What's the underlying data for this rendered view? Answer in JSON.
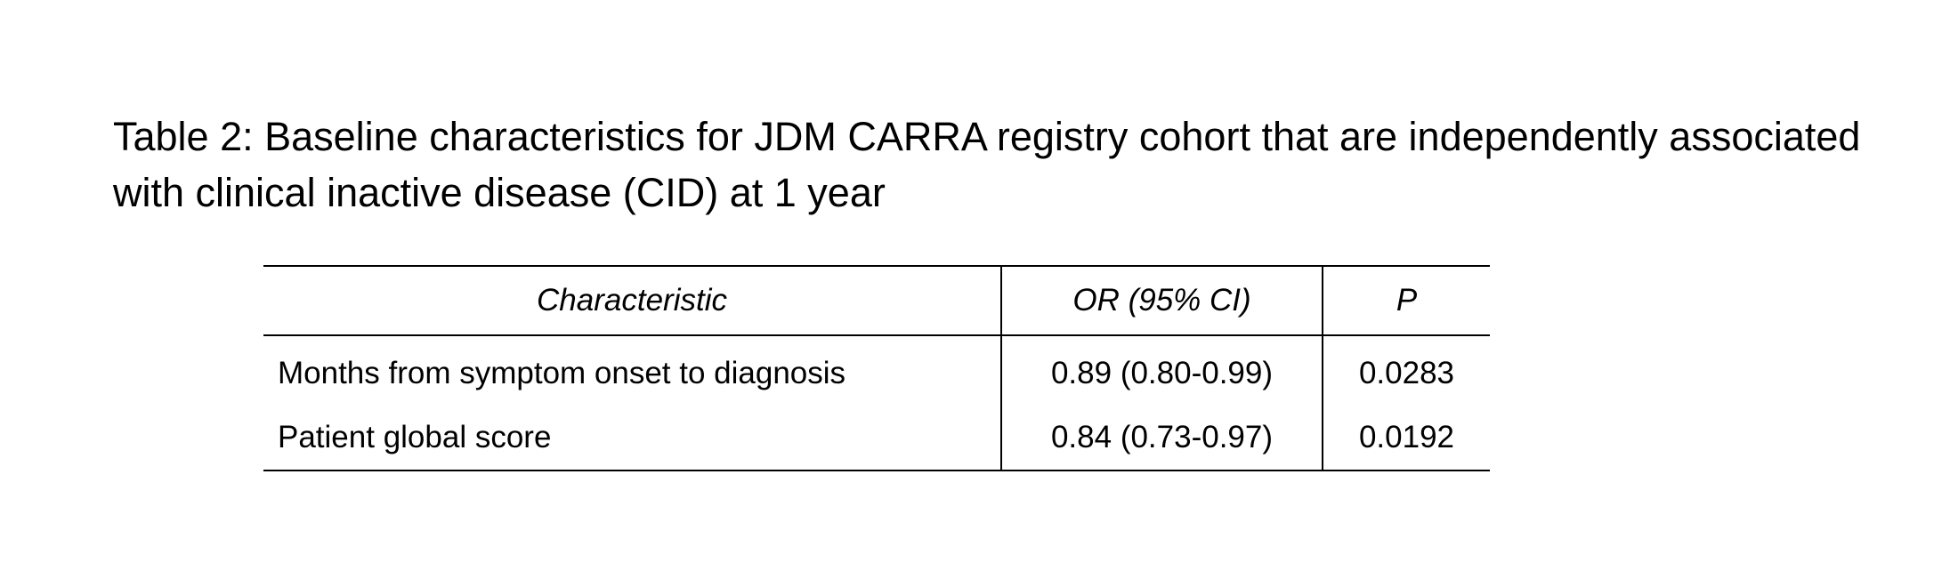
{
  "title": "Table 2: Baseline characteristics for JDM CARRA registry cohort that are independently associated with clinical inactive disease (CID) at 1 year",
  "table": {
    "headers": [
      "Characteristic",
      "OR (95% CI)",
      "P"
    ],
    "rows": [
      [
        "Months from symptom onset to diagnosis",
        "0.89 (0.80-0.99)",
        "0.0283"
      ],
      [
        "Patient global score",
        "0.84 (0.73-0.97)",
        "0.0192"
      ]
    ]
  }
}
